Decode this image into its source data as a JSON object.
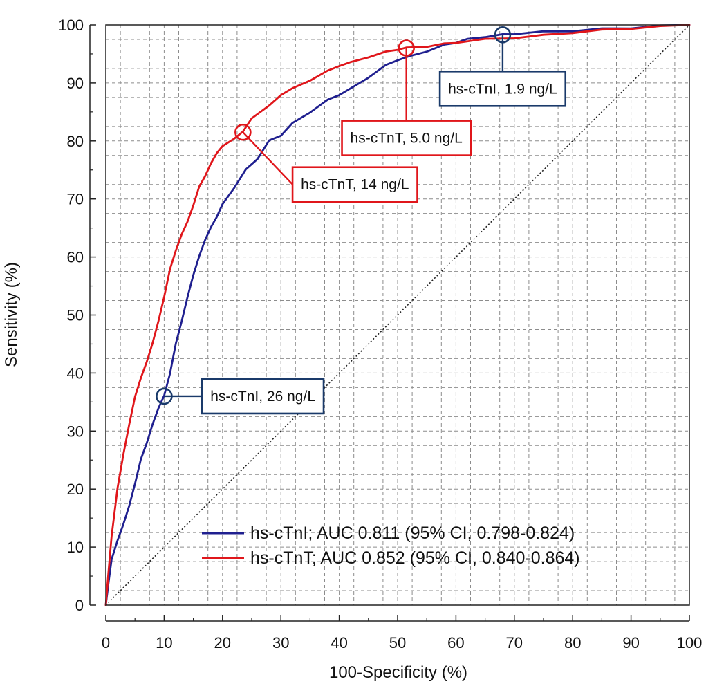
{
  "chart_data": {
    "type": "line",
    "title": "",
    "xlabel": "100-Specificity (%)",
    "ylabel": "Sensitivity (%)",
    "xlim": [
      0,
      100
    ],
    "ylim": [
      0,
      100
    ],
    "x_ticks": [
      0,
      10,
      20,
      30,
      40,
      50,
      60,
      70,
      80,
      90,
      100
    ],
    "y_ticks": [
      0,
      10,
      20,
      30,
      40,
      50,
      60,
      70,
      80,
      90,
      100
    ],
    "grid": true,
    "colors": {
      "hs_ctni": "#1f1f8f",
      "hs_ctnt": "#e0161b",
      "reference": "#222222",
      "callout_ctni": "#1a3a6a"
    },
    "series": [
      {
        "key": "hs_ctni",
        "name": "hs-cTnI; AUC 0.811 (95% CI, 0.798-0.824)",
        "x": [
          0,
          0.5,
          1,
          2,
          3,
          4,
          5,
          6,
          7,
          8,
          9,
          10,
          11,
          12,
          13,
          14,
          15,
          16,
          17,
          18,
          19,
          20,
          22,
          24,
          26,
          28,
          30,
          32,
          35,
          38,
          40,
          42,
          45,
          48,
          50,
          52,
          55,
          58,
          60,
          62,
          65,
          68,
          70,
          75,
          80,
          85,
          90,
          95,
          100
        ],
        "y": [
          0,
          4,
          8,
          11,
          14,
          17,
          21,
          25,
          28,
          31,
          34,
          36,
          40,
          45,
          49,
          53,
          57,
          60,
          63,
          65,
          67,
          69,
          72,
          75,
          77,
          80,
          81,
          83,
          85,
          87,
          88,
          89,
          91,
          93,
          94,
          94.5,
          95.5,
          96.5,
          97,
          97.5,
          98,
          98.3,
          98.5,
          98.8,
          99,
          99.3,
          99.5,
          99.8,
          100
        ]
      },
      {
        "key": "hs_ctnt",
        "name": "hs-cTnT; AUC 0.852 (95% CI, 0.840-0.864)",
        "x": [
          0,
          0.5,
          1,
          2,
          3,
          4,
          5,
          6,
          7,
          8,
          9,
          10,
          11,
          12,
          13,
          14,
          15,
          16,
          17,
          18,
          19,
          20,
          22,
          23.5,
          25,
          28,
          30,
          32,
          35,
          38,
          40,
          42,
          45,
          48,
          50,
          51.5,
          55,
          58,
          60,
          65,
          70,
          75,
          80,
          85,
          90,
          95,
          100
        ],
        "y": [
          0,
          6,
          12,
          20,
          26,
          31,
          36,
          39,
          42,
          45,
          49,
          53,
          58,
          61,
          64,
          66,
          69,
          72,
          74,
          76,
          78,
          79,
          80.5,
          81.5,
          84,
          86,
          88,
          89,
          90.5,
          92,
          93,
          93.5,
          94.5,
          95.3,
          95.8,
          96,
          96.3,
          96.7,
          97,
          97.5,
          97.8,
          98.2,
          98.7,
          99.1,
          99.4,
          99.7,
          100
        ]
      }
    ],
    "reference_line": {
      "x": [
        0,
        100
      ],
      "y": [
        0,
        100
      ]
    },
    "callouts": [
      {
        "series": "hs_ctni",
        "point": [
          10,
          36
        ],
        "label": "hs-cTnI, 26 ng/L",
        "box_anchor": [
          16.5,
          36
        ],
        "anchor": "left"
      },
      {
        "series": "hs_ctnt",
        "point": [
          23.5,
          81.5
        ],
        "label": "hs-cTnT, 14 ng/L",
        "box_anchor": [
          32,
          72.5
        ],
        "anchor": "left"
      },
      {
        "series": "hs_ctnt",
        "point": [
          51.5,
          96
        ],
        "label": "hs-cTnT, 5.0 ng/L",
        "box_anchor": [
          51.5,
          80.5
        ],
        "anchor": "center"
      },
      {
        "series": "hs_ctni",
        "point": [
          68,
          98.3
        ],
        "label": "hs-cTnI, 1.9 ng/L",
        "box_anchor": [
          68,
          89
        ],
        "anchor": "center"
      }
    ],
    "legend_position": "bottom-right"
  }
}
